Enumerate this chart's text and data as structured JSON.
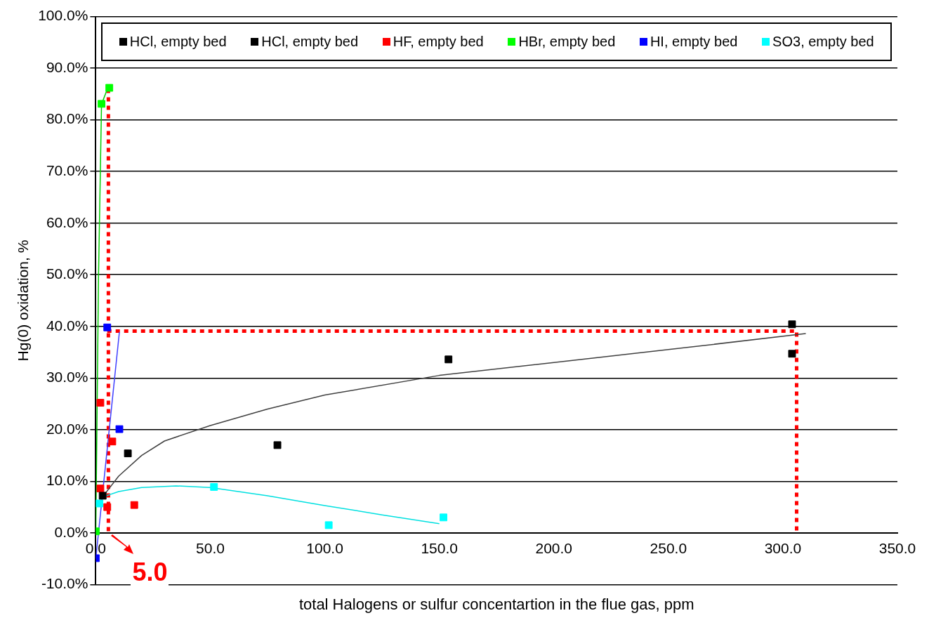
{
  "chart_data": {
    "type": "scatter",
    "xlabel": "total Halogens or sulfur concentartion in the flue gas, ppm",
    "ylabel": "Hg(0) oxidation, %",
    "xlim": [
      0,
      350
    ],
    "xticks": [
      {
        "value": 0,
        "label": "0.0"
      },
      {
        "value": 50,
        "label": "50.0"
      },
      {
        "value": 100,
        "label": "100.0"
      },
      {
        "value": 150,
        "label": "150.0"
      },
      {
        "value": 200,
        "label": "200.0"
      },
      {
        "value": 250,
        "label": "250.0"
      },
      {
        "value": 300,
        "label": "300.0"
      },
      {
        "value": 350,
        "label": "350.0"
      }
    ],
    "ylim": [
      -10,
      100
    ],
    "yticks": [
      {
        "value": -10,
        "label": "-10.0%"
      },
      {
        "value": 0,
        "label": "0.0%"
      },
      {
        "value": 10,
        "label": "10.0%"
      },
      {
        "value": 20,
        "label": "20.0%"
      },
      {
        "value": 30,
        "label": "30.0%"
      },
      {
        "value": 40,
        "label": "40.0%"
      },
      {
        "value": 50,
        "label": "50.0%"
      },
      {
        "value": 60,
        "label": "60.0%"
      },
      {
        "value": 70,
        "label": "70.0%"
      },
      {
        "value": 80,
        "label": "80.0%"
      },
      {
        "value": 90,
        "label": "90.0%"
      },
      {
        "value": 100,
        "label": "100.0%"
      }
    ],
    "grid": "y",
    "legend": "top",
    "marker": "square",
    "series": [
      {
        "name": "HCl, empty bed",
        "color": "#000000",
        "x": [
          14,
          79.3,
          154
        ],
        "values": [
          15.4,
          17,
          33.6
        ]
      },
      {
        "name": "HCl, empty bed",
        "color": "#000000",
        "x": [
          3,
          304,
          304
        ],
        "values": [
          7.2,
          40.4,
          34.7
        ]
      },
      {
        "name": "HF, empty bed",
        "color": "#ff0000",
        "x": [
          2,
          2,
          7.2,
          5,
          16.8
        ],
        "values": [
          25.2,
          8.6,
          17.7,
          5,
          5.4
        ]
      },
      {
        "name": "HBr, empty bed",
        "color": "#00ff00",
        "x": [
          0,
          2.5,
          5.9
        ],
        "values": [
          0.3,
          83.1,
          86.2
        ]
      },
      {
        "name": "HI, empty bed",
        "color": "#0000ff",
        "x": [
          0,
          5,
          10.3
        ],
        "values": [
          -4.9,
          39.8,
          20.1
        ]
      },
      {
        "name": "SO3, empty bed",
        "color": "#00ffff",
        "x": [
          1.6,
          51.6,
          101.7,
          151.8
        ],
        "values": [
          5.7,
          8.9,
          1.5,
          3
        ]
      },
      {
        "type": "line",
        "color": "#404040",
        "marker": "none",
        "x": [
          3,
          10,
          20,
          30,
          50,
          75,
          100,
          150,
          200,
          250,
          310
        ],
        "values": [
          7,
          11,
          15,
          17.8,
          20.8,
          24,
          26.7,
          30.5,
          33,
          35.5,
          38.6
        ]
      },
      {
        "type": "line",
        "color": "#00e0e0",
        "marker": "none",
        "x": [
          2,
          10,
          20,
          35,
          50,
          75,
          100,
          125,
          150
        ],
        "values": [
          6.8,
          8,
          8.8,
          9.1,
          8.8,
          7.2,
          5.3,
          3.5,
          1.8
        ]
      },
      {
        "type": "line",
        "color": "#4040ff",
        "marker": "none",
        "x": [
          0,
          10.3
        ],
        "values": [
          -5,
          38.9
        ]
      },
      {
        "type": "line",
        "color": "#00cc00",
        "marker": "none",
        "x": [
          0,
          1.2,
          2.5,
          5.5
        ],
        "values": [
          0.3,
          50,
          83,
          86.5
        ]
      },
      {
        "type": "line",
        "color": "#ff0000",
        "marker": "none",
        "line_style": "dotted",
        "x": [
          5.5,
          5.5
        ],
        "values": [
          86,
          0
        ]
      },
      {
        "type": "line",
        "color": "#ff0000",
        "marker": "none",
        "line_style": "dotted",
        "x": [
          5,
          306,
          306
        ],
        "values": [
          39.1,
          39.1,
          0
        ]
      }
    ],
    "annotations": [
      "5.0"
    ]
  }
}
